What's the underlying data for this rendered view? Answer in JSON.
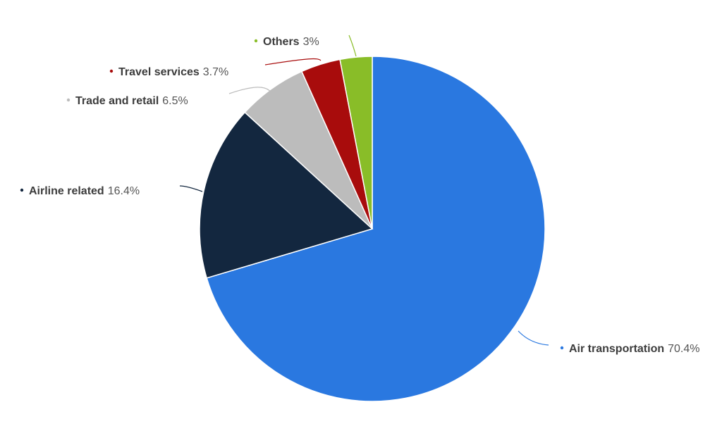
{
  "chart_data": {
    "type": "pie",
    "start_angle_deg": 0,
    "direction": "clockwise",
    "slices": [
      {
        "name": "Air transportation",
        "value": 70.4,
        "label_value": "70.4%",
        "color": "#2a78e0"
      },
      {
        "name": "Airline related",
        "value": 16.4,
        "label_value": "16.4%",
        "color": "#13273f"
      },
      {
        "name": "Trade and retail",
        "value": 6.5,
        "label_value": "6.5%",
        "color": "#bcbcbc"
      },
      {
        "name": "Travel services",
        "value": 3.7,
        "label_value": "3.7%",
        "color": "#a80c0c"
      },
      {
        "name": "Others",
        "value": 3,
        "label_value": "3%",
        "color": "#89bd28"
      }
    ]
  }
}
